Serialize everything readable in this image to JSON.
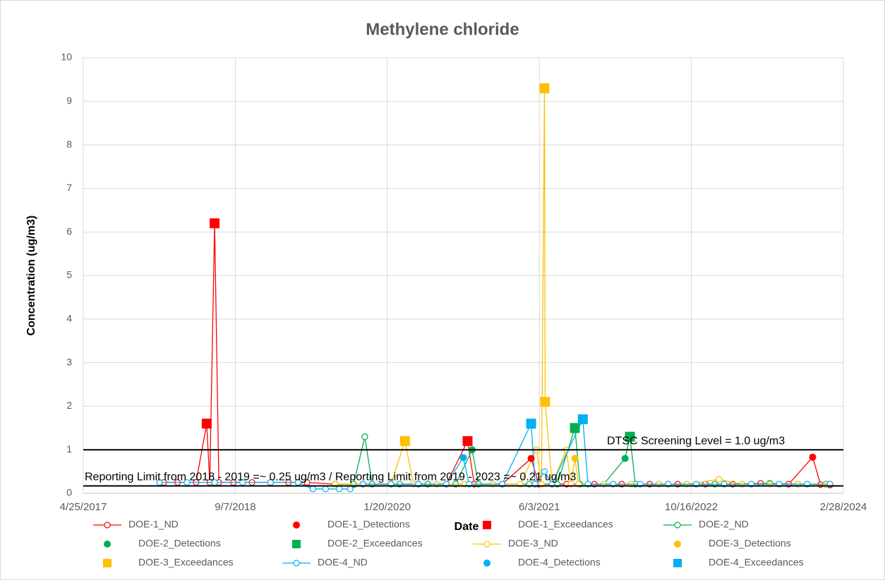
{
  "chart_data": {
    "type": "line",
    "title": "Methylene chloride",
    "x_label": "Date",
    "y_label": "Concentration (ug/m3)",
    "xlim": [
      "2017-04-25",
      "2024-02-28"
    ],
    "xticks": [
      {
        "value": "2017-04-25",
        "label": "4/25/2017"
      },
      {
        "value": "2018-09-07",
        "label": "9/7/2018"
      },
      {
        "value": "2020-01-20",
        "label": "1/20/2020"
      },
      {
        "value": "2021-06-03",
        "label": "6/3/2021"
      },
      {
        "value": "2022-10-16",
        "label": "10/16/2022"
      },
      {
        "value": "2024-02-28",
        "label": "2/28/2024"
      }
    ],
    "ylim": [
      0,
      10
    ],
    "yticks": [
      0,
      1,
      2,
      3,
      4,
      5,
      6,
      7,
      8,
      9,
      10
    ],
    "grid": true,
    "legend": "bottom",
    "reference_lines": [
      {
        "value": 1.0,
        "label": "DTSC Screening Level = 1.0 ug/m3"
      },
      {
        "value": 0.17,
        "label": "Reporting Limit from 2018 - 2019 =~ 0.25 ug/m3 / Reporting Limit from 2019 - 2023 =~ 0.21 ug/m3"
      }
    ],
    "series": [
      {
        "name": "DOE-1_ND",
        "color": "#ff0000",
        "marker": "circle-open",
        "line": true,
        "x": [
          "2018-01-15",
          "2018-03-01",
          "2018-05-01",
          "2018-06-05",
          "2018-06-15",
          "2018-07-01",
          "2018-07-15",
          "2018-09-01",
          "2018-11-01",
          "2019-01-01",
          "2019-03-01",
          "2019-05-01",
          "2019-08-01",
          "2019-11-01",
          "2020-02-01",
          "2020-05-01",
          "2020-08-01",
          "2020-10-10",
          "2020-11-01",
          "2021-02-01",
          "2021-05-07",
          "2021-06-01",
          "2021-09-01",
          "2021-12-01",
          "2022-03-01",
          "2022-06-01",
          "2022-09-01",
          "2022-12-01",
          "2023-03-01",
          "2023-06-01",
          "2023-09-01",
          "2023-11-19",
          "2023-12-15",
          "2024-01-15"
        ],
        "values": [
          0.25,
          0.25,
          0.25,
          1.6,
          0.25,
          6.2,
          0.25,
          0.25,
          0.25,
          0.25,
          0.25,
          0.25,
          0.21,
          0.21,
          0.21,
          0.21,
          0.21,
          1.2,
          0.21,
          0.21,
          0.8,
          0.21,
          0.21,
          0.21,
          0.21,
          0.21,
          0.21,
          0.21,
          0.21,
          0.23,
          0.21,
          0.83,
          0.2,
          0.19
        ]
      },
      {
        "name": "DOE-1_Detections",
        "color": "#ff0000",
        "marker": "circle",
        "line": false,
        "x": [
          "2021-05-07",
          "2023-11-19"
        ],
        "values": [
          0.8,
          0.83
        ]
      },
      {
        "name": "DOE-1_Exceedances",
        "color": "#ff0000",
        "marker": "square",
        "line": false,
        "x": [
          "2018-06-05",
          "2018-07-01",
          "2020-10-10"
        ],
        "values": [
          1.6,
          6.2,
          1.2
        ]
      },
      {
        "name": "DOE-2_ND",
        "color": "#00b050",
        "marker": "circle-open",
        "line": true,
        "x": [
          "2019-08-01",
          "2019-10-01",
          "2019-11-07",
          "2019-12-01",
          "2020-03-01",
          "2020-06-01",
          "2020-09-01",
          "2020-10-25",
          "2020-11-15",
          "2021-02-01",
          "2021-05-01",
          "2021-08-01",
          "2021-09-28",
          "2021-10-15",
          "2022-01-01",
          "2022-03-12",
          "2022-03-28",
          "2022-04-15",
          "2022-07-01",
          "2022-10-01",
          "2023-01-01",
          "2023-04-01",
          "2023-07-01",
          "2023-10-01",
          "2024-01-01"
        ],
        "values": [
          0.21,
          0.21,
          1.3,
          0.21,
          0.21,
          0.21,
          0.21,
          1.0,
          0.21,
          0.21,
          0.21,
          0.21,
          1.5,
          0.21,
          0.21,
          0.8,
          1.3,
          0.21,
          0.21,
          0.21,
          0.21,
          0.21,
          0.23,
          0.21,
          0.21
        ]
      },
      {
        "name": "DOE-2_Detections",
        "color": "#00b050",
        "marker": "circle",
        "line": false,
        "x": [
          "2020-10-25",
          "2022-03-12"
        ],
        "values": [
          1.0,
          0.8
        ]
      },
      {
        "name": "DOE-2_Exceedances",
        "color": "#00b050",
        "marker": "square",
        "line": false,
        "x": [
          "2021-09-28",
          "2022-03-28"
        ],
        "values": [
          1.5,
          1.3
        ]
      },
      {
        "name": "DOE-3_ND",
        "color": "#ffc000",
        "marker": "circle-open",
        "line": true,
        "x": [
          "2019-08-01",
          "2019-11-01",
          "2020-02-01",
          "2020-03-18",
          "2020-04-15",
          "2020-07-01",
          "2020-10-01",
          "2021-01-01",
          "2021-04-01",
          "2021-05-25",
          "2021-06-10",
          "2021-06-20",
          "2021-06-22",
          "2021-07-15",
          "2021-08-31",
          "2021-09-15",
          "2021-09-28",
          "2021-10-10",
          "2022-01-01",
          "2022-04-01",
          "2022-07-01",
          "2022-10-01",
          "2023-01-15",
          "2023-04-01",
          "2023-07-01",
          "2023-10-01",
          "2024-01-01"
        ],
        "values": [
          0.21,
          0.21,
          0.21,
          1.2,
          0.21,
          0.21,
          0.21,
          0.21,
          0.21,
          1.0,
          0.21,
          9.3,
          2.1,
          0.21,
          1.0,
          0.21,
          0.8,
          0.21,
          0.21,
          0.21,
          0.21,
          0.21,
          0.32,
          0.21,
          0.21,
          0.21,
          0.2
        ]
      },
      {
        "name": "DOE-3_Detections",
        "color": "#ffc000",
        "marker": "circle",
        "line": false,
        "x": [
          "2021-09-28"
        ],
        "values": [
          0.8
        ]
      },
      {
        "name": "DOE-3_Exceedances",
        "color": "#ffc000",
        "marker": "square",
        "line": false,
        "x": [
          "2020-03-18",
          "2021-06-20",
          "2021-06-22"
        ],
        "values": [
          1.2,
          9.3,
          2.1
        ]
      },
      {
        "name": "DOE-4_ND",
        "color": "#00b0f0",
        "marker": "circle-open",
        "line": true,
        "x": [
          "2018-01-01",
          "2018-04-01",
          "2018-07-01",
          "2018-10-01",
          "2019-01-01",
          "2019-04-01",
          "2019-05-20",
          "2019-07-01",
          "2019-08-15",
          "2019-09-20",
          "2019-11-01",
          "2020-02-01",
          "2020-05-01",
          "2020-08-01",
          "2020-09-26",
          "2020-10-15",
          "2021-02-01",
          "2021-05-07",
          "2021-05-20",
          "2021-06-20",
          "2021-07-15",
          "2021-10-24",
          "2021-11-10",
          "2022-02-01",
          "2022-05-01",
          "2022-08-01",
          "2022-11-01",
          "2023-02-01",
          "2023-05-01",
          "2023-08-01",
          "2023-11-01",
          "2024-01-15"
        ],
        "values": [
          0.25,
          0.25,
          0.25,
          0.25,
          0.25,
          0.25,
          0.1,
          0.1,
          0.1,
          0.1,
          0.21,
          0.21,
          0.21,
          0.21,
          0.82,
          0.21,
          0.21,
          1.6,
          0.21,
          0.5,
          0.21,
          1.7,
          0.21,
          0.21,
          0.21,
          0.21,
          0.21,
          0.21,
          0.21,
          0.21,
          0.21,
          0.21
        ]
      },
      {
        "name": "DOE-4_Detections",
        "color": "#00b0f0",
        "marker": "circle",
        "line": false,
        "x": [
          "2020-09-26"
        ],
        "values": [
          0.82
        ]
      },
      {
        "name": "DOE-4_Exceedances",
        "color": "#00b0f0",
        "marker": "square",
        "line": false,
        "x": [
          "2021-05-07",
          "2021-10-24"
        ],
        "values": [
          1.6,
          1.7
        ]
      }
    ]
  }
}
